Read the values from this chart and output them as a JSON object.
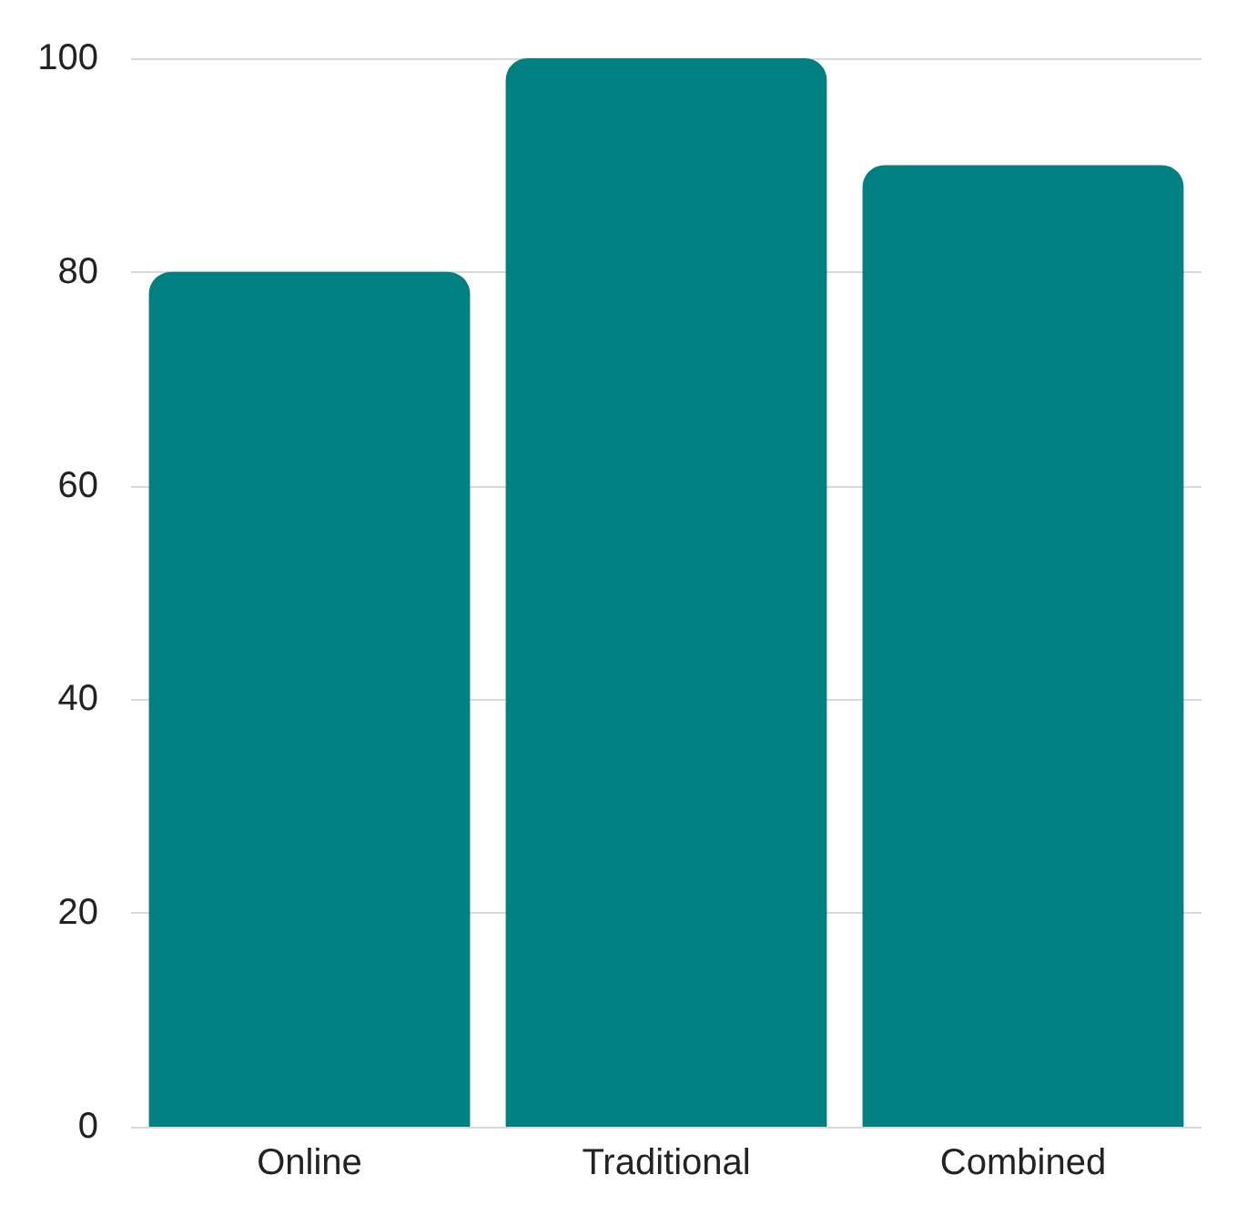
{
  "chart_data": {
    "type": "bar",
    "categories": [
      "Online",
      "Traditional",
      "Combined"
    ],
    "values": [
      80,
      100,
      90
    ],
    "color": "#008080",
    "ylim": [
      0,
      100
    ],
    "yticks": [
      0,
      20,
      40,
      60,
      80,
      100
    ],
    "grid": "y"
  }
}
